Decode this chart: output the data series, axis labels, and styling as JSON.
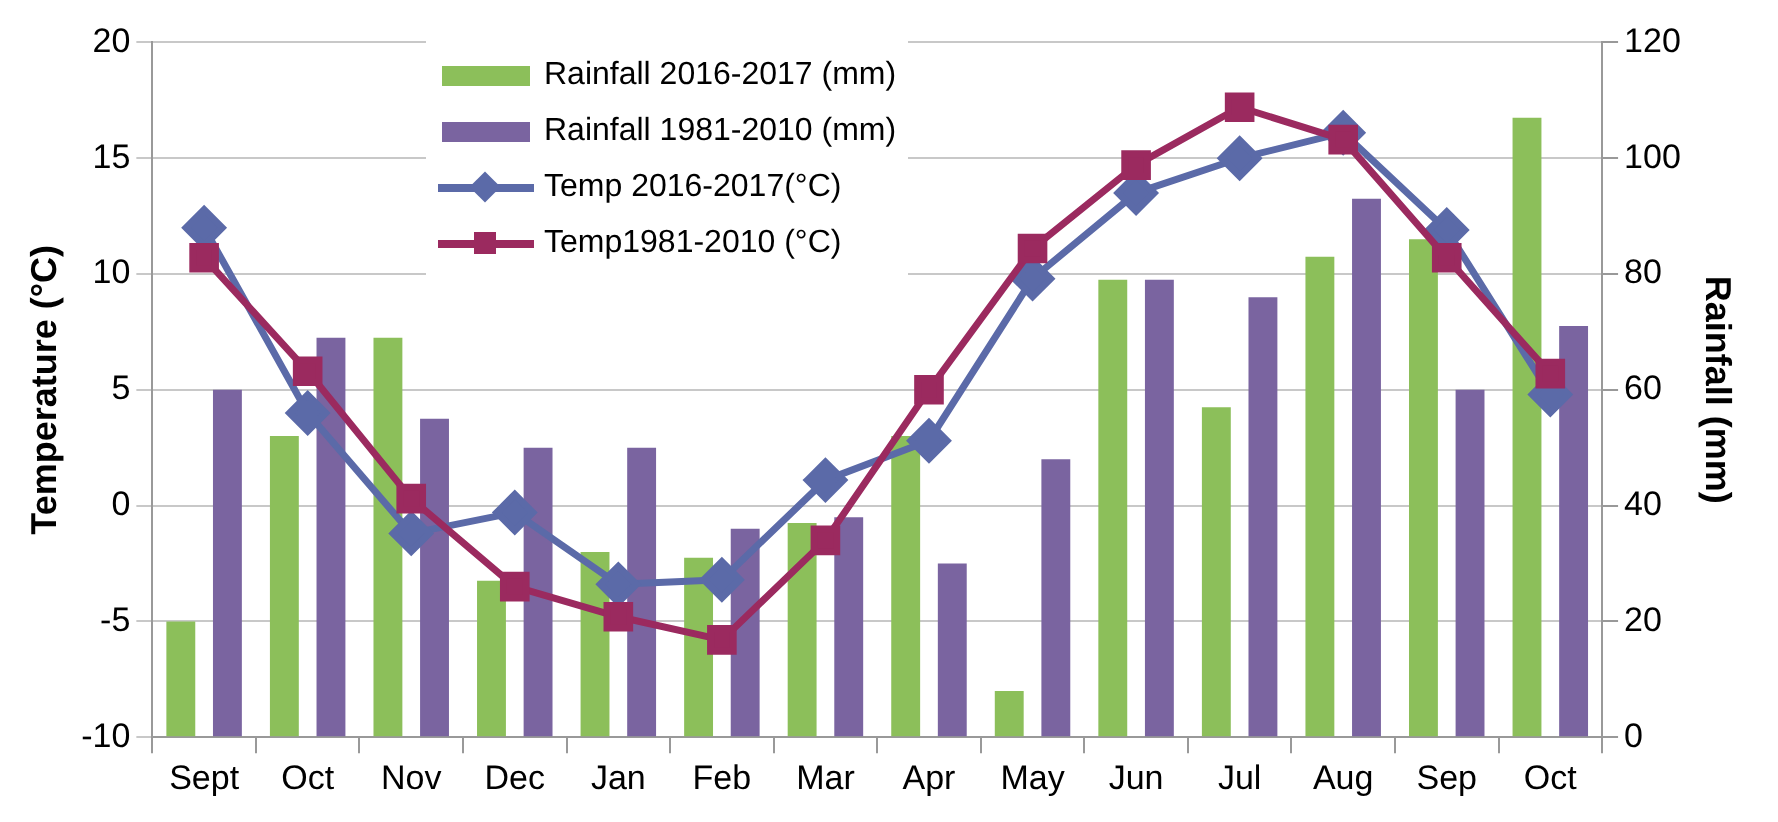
{
  "chart_data": {
    "type": "bar",
    "categories": [
      "Sept",
      "Oct",
      "Nov",
      "Dec",
      "Jan",
      "Feb",
      "Mar",
      "Apr",
      "May",
      "Jun",
      "Jul",
      "Aug",
      "Sep",
      "Oct"
    ],
    "ylabel": "Temperature (°C)",
    "y2label": "Rainfall (mm)",
    "ylim": [
      -10,
      20
    ],
    "yticks": [
      -10,
      -5,
      0,
      5,
      10,
      15,
      20
    ],
    "y2lim": [
      0,
      120
    ],
    "y2ticks": [
      0,
      20,
      40,
      60,
      80,
      100,
      120
    ],
    "grid": "y",
    "legend": "top left",
    "series": [
      {
        "name": "Rainfall 2016-2017 (mm)",
        "axis": "y2",
        "color": "#8cbf5a",
        "values": [
          20,
          52,
          69,
          27,
          32,
          31,
          37,
          52,
          8,
          79,
          57,
          83,
          86,
          107
        ]
      },
      {
        "name": "Rainfall 1981-2010 (mm)",
        "axis": "y2",
        "color": "#7a64a0",
        "values": [
          60,
          69,
          55,
          50,
          50,
          36,
          38,
          30,
          48,
          79,
          76,
          93,
          60,
          71
        ]
      },
      {
        "name": "Temp 2016-2017(°C)",
        "type": "line",
        "marker": "diamond",
        "color": "#5b6aa8",
        "values": [
          12,
          4,
          -1.2,
          -0.3,
          -3.4,
          -3.2,
          1.1,
          2.8,
          9.8,
          13.5,
          15,
          16.1,
          11.9,
          4.8
        ]
      },
      {
        "name": "Temp1981-2010 (°C)",
        "type": "line",
        "marker": "square",
        "color": "#9b2a5f",
        "values": [
          10.7,
          5.8,
          0.3,
          -3.5,
          -4.8,
          -5.8,
          -1.5,
          5,
          11.1,
          14.7,
          17.2,
          15.8,
          10.7,
          5.7
        ]
      }
    ]
  }
}
